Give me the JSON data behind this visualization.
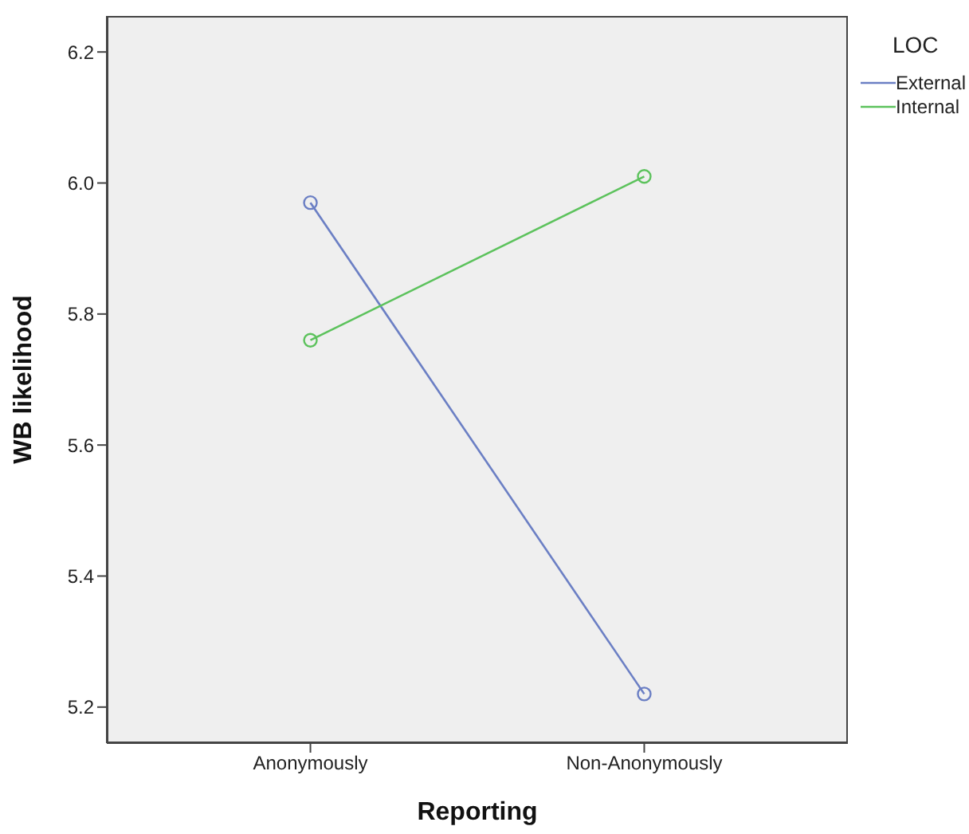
{
  "chart_data": {
    "type": "line",
    "xlabel": "Reporting",
    "ylabel": "WB likelihood",
    "legend_title": "LOC",
    "categories": [
      "Anonymously",
      "Non-Anonymously"
    ],
    "series": [
      {
        "name": "External",
        "color": "#6b7fc4",
        "values": [
          5.97,
          5.22
        ]
      },
      {
        "name": "Internal",
        "color": "#5cc25c",
        "values": [
          5.76,
          6.01
        ]
      }
    ],
    "ylim": [
      5.145,
      6.255
    ],
    "yticks": [
      5.2,
      5.4,
      5.6,
      5.8,
      {
        "value": 6,
        "label": "6.0"
      },
      6.2
    ],
    "marker": "circle",
    "line_style": "solid",
    "legend": "top right"
  }
}
